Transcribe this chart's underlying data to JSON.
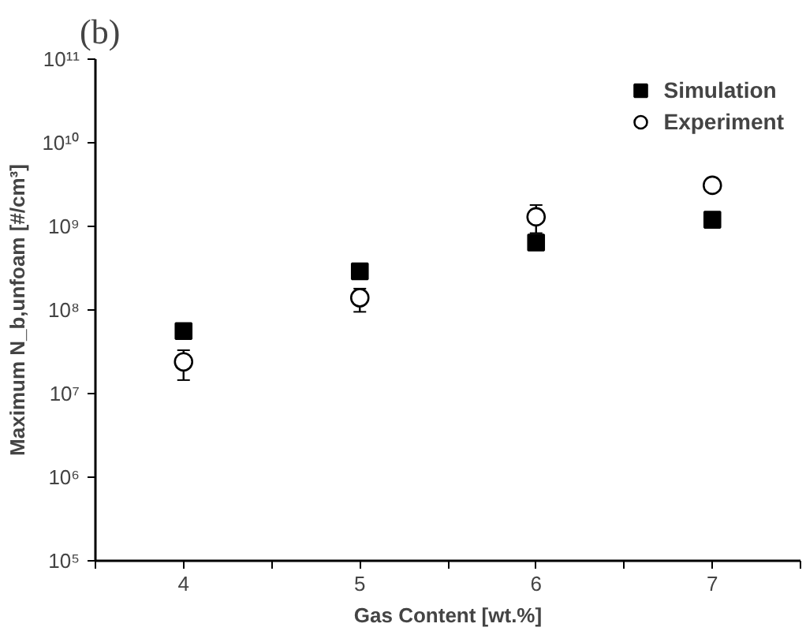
{
  "chart_data": {
    "type": "scatter",
    "xlabel": "Gas Content [wt.%]",
    "ylabel": "Maximum N_b,unfoam [#/cm³]",
    "annotations": [
      "(b)"
    ],
    "x": [
      4,
      5,
      6,
      7
    ],
    "series": [
      {
        "name": "Simulation",
        "color": "#000000",
        "marker": "square",
        "values": [
          56000000,
          290000000,
          640000000,
          1200000000
        ]
      },
      {
        "name": "Experiment",
        "color": "#000000",
        "marker": "circle",
        "values": [
          24000000,
          140000000,
          1300000000,
          3100000000
        ],
        "errors": [
          [
            14500000,
            33000000
          ],
          [
            95000000,
            180000000
          ],
          [
            830000000,
            1800000000
          ],
          [
            2700000000,
            3500000000
          ]
        ]
      }
    ],
    "xlim": [
      3.5,
      7.5
    ],
    "xticks": [
      {
        "value": 3.5,
        "label": null
      },
      4,
      {
        "value": 4.5,
        "label": null
      },
      5,
      {
        "value": 5.5,
        "label": null
      },
      6,
      {
        "value": 6.5,
        "label": null
      },
      7,
      {
        "value": 7.5,
        "label": null
      }
    ],
    "ylim": [
      100000,
      100000000000
    ],
    "yticks": [
      {
        "value": 100000,
        "label": "10⁵"
      },
      {
        "value": 1000000,
        "label": "10⁶"
      },
      {
        "value": 10000000,
        "label": "10⁷"
      },
      {
        "value": 100000000,
        "label": "10⁸"
      },
      {
        "value": 1000000000,
        "label": "10⁹"
      },
      {
        "value": 10000000000,
        "label": "10¹⁰"
      },
      {
        "value": 100000000000,
        "label": "10¹¹"
      }
    ],
    "log": "y",
    "grid": false,
    "legend": "top right"
  }
}
